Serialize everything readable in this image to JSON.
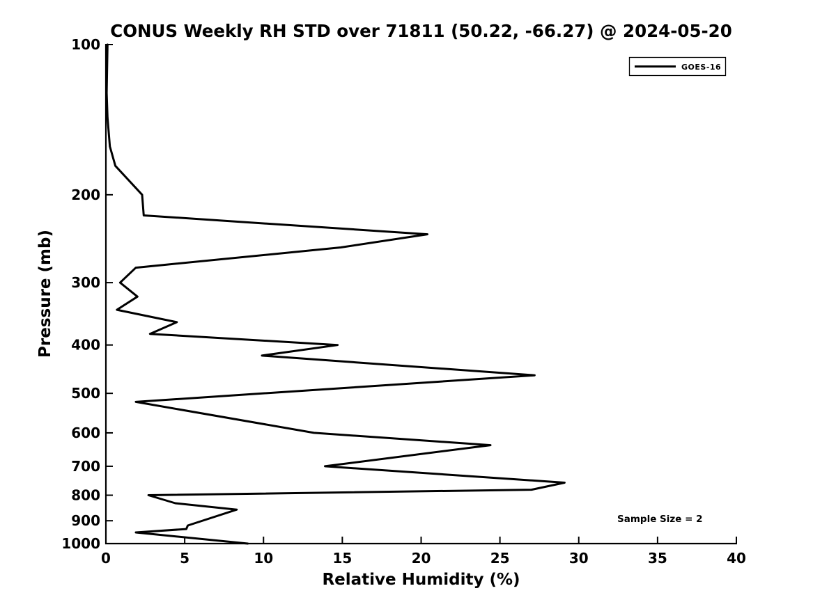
{
  "window": {
    "background": "#ffffff",
    "foreground": "#000000"
  },
  "chart_data": {
    "type": "line",
    "title": "CONUS Weekly RH STD over 71811 (50.22, -66.27) @ 2024-05-20",
    "xlabel": "Relative Humidity (%)",
    "ylabel": "Pressure (mb)",
    "xlim": [
      0,
      40
    ],
    "ylim": [
      1000,
      100
    ],
    "xscale": "linear",
    "yscale": "log",
    "xticks": [
      0,
      5,
      10,
      15,
      20,
      25,
      30,
      35,
      40
    ],
    "yticks": [
      100,
      200,
      300,
      400,
      500,
      600,
      700,
      800,
      900,
      1000
    ],
    "grid": false,
    "line_color": "#000000",
    "legend": {
      "position": "upper-right",
      "entries": [
        {
          "label": "GOES-16",
          "color": "#000000"
        }
      ]
    },
    "annotation": "Sample Size = 2",
    "series": [
      {
        "name": "GOES-16",
        "color": "#000000",
        "points_pressure_rh": [
          [
            100,
            0.1
          ],
          [
            125,
            0.05
          ],
          [
            140,
            0.1
          ],
          [
            160,
            0.25
          ],
          [
            175,
            0.6
          ],
          [
            200,
            2.3
          ],
          [
            220,
            2.4
          ],
          [
            240,
            20.4
          ],
          [
            255,
            14.9
          ],
          [
            280,
            1.9
          ],
          [
            300,
            0.9
          ],
          [
            320,
            2.0
          ],
          [
            340,
            0.7
          ],
          [
            360,
            4.5
          ],
          [
            380,
            2.8
          ],
          [
            400,
            14.7
          ],
          [
            420,
            9.9
          ],
          [
            460,
            27.2
          ],
          [
            520,
            1.9
          ],
          [
            600,
            13.2
          ],
          [
            635,
            24.4
          ],
          [
            700,
            13.9
          ],
          [
            755,
            29.1
          ],
          [
            780,
            27.0
          ],
          [
            800,
            2.7
          ],
          [
            830,
            4.4
          ],
          [
            855,
            8.3
          ],
          [
            920,
            5.2
          ],
          [
            935,
            5.1
          ],
          [
            950,
            1.9
          ],
          [
            1000,
            9.0
          ]
        ]
      }
    ]
  }
}
